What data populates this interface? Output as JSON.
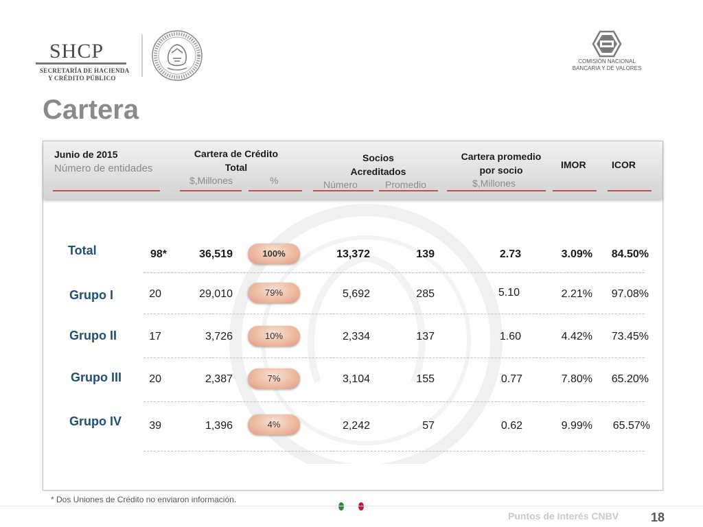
{
  "header": {
    "shcp_word": "SHCP",
    "shcp_line1": "SECRETARÍA DE HACIENDA",
    "shcp_line2": "Y CRÉDITO PÚBLICO",
    "cnbv_line1": "COMISIÓN NACIONAL",
    "cnbv_line2": "BANCARIA Y DE VALORES"
  },
  "title": "Cartera",
  "columns": {
    "period": "Junio de 2015",
    "entities": "Número de entidades",
    "cartera_l1": "Cartera de Crédito",
    "cartera_l2": "Total",
    "cartera_sub_amount": "$,Millones",
    "cartera_sub_pct": "%",
    "socios_l1": "Socios",
    "socios_l2": "Acreditados",
    "socios_sub_num": "Número",
    "socios_sub_avg": "Promedio",
    "prom_l1": "Cartera promedio",
    "prom_l2": "por socio",
    "prom_sub": "$,Millones",
    "imor": "IMOR",
    "icor": "ICOR"
  },
  "rows": [
    {
      "label": "Total",
      "entities": "98*",
      "cartera": "36,519",
      "pct": "100%",
      "socios": "13,372",
      "promedio": "139",
      "cartera_socio": "2.73",
      "imor": "3.09%",
      "icor": "84.50%"
    },
    {
      "label": "Grupo I",
      "entities": "20",
      "cartera": "29,010",
      "pct": "79%",
      "socios": "5,692",
      "promedio": "285",
      "cartera_socio": "5.10",
      "imor": "2.21%",
      "icor": "97.08%"
    },
    {
      "label": "Grupo II",
      "entities": "17",
      "cartera": "3,726",
      "pct": "10%",
      "socios": "2,334",
      "promedio": "137",
      "cartera_socio": "1.60",
      "imor": "4.42%",
      "icor": "73.45%"
    },
    {
      "label": "Grupo III",
      "entities": "20",
      "cartera": "2,387",
      "pct": "7%",
      "socios": "3,104",
      "promedio": "155",
      "cartera_socio": "0.77",
      "imor": "7.80%",
      "icor": "65.20%"
    },
    {
      "label": "Grupo IV",
      "entities": "39",
      "cartera": "1,396",
      "pct": "4%",
      "socios": "2,242",
      "promedio": "57",
      "cartera_socio": "0.62",
      "imor": "9.99%",
      "icor": "65.57%"
    }
  ],
  "footnote": "* Dos Uniones de Crédito no enviaron información.",
  "footer": {
    "brand": "Puntos de Interés CNBV",
    "page_number": "18"
  },
  "colors": {
    "accent_line": "#c0504d",
    "row_label": "#1f4e79",
    "dot_green": "#2e8b3a",
    "dot_red": "#c4143c"
  }
}
